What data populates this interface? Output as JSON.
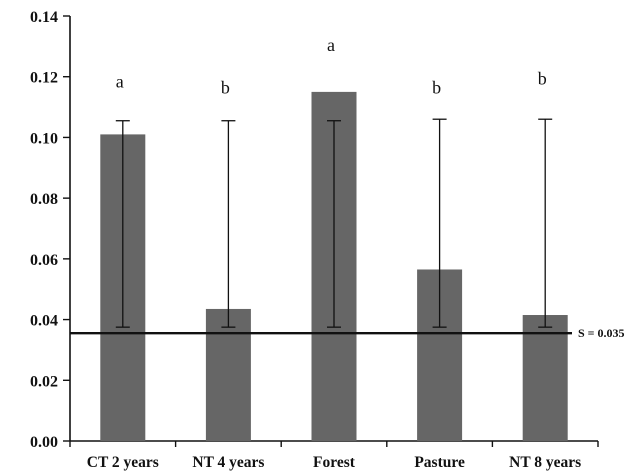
{
  "chart_data": {
    "type": "bar",
    "categories": [
      "CT 2 years",
      "NT 4 years",
      "Forest",
      "Pasture",
      "NT 8 years"
    ],
    "values": [
      0.101,
      0.0435,
      0.115,
      0.0565,
      0.0415
    ],
    "error_bars": [
      {
        "low": 0.0375,
        "high": 0.1055
      },
      {
        "low": 0.0375,
        "high": 0.1055
      },
      {
        "low": 0.0375,
        "high": 0.1055
      },
      {
        "low": 0.0375,
        "high": 0.106
      },
      {
        "low": 0.0375,
        "high": 0.106
      }
    ],
    "letters": [
      "a",
      "b",
      "a",
      "b",
      "b"
    ],
    "letter_levels": [
      0.1165,
      0.1145,
      0.1285,
      0.1145,
      0.1175
    ],
    "reference_line": {
      "value": 0.0355,
      "label": "S = 0.035"
    },
    "yticks": [
      "0.00",
      "0.02",
      "0.04",
      "0.06",
      "0.08",
      "0.10",
      "0.12",
      "0.14"
    ],
    "ylim": [
      0,
      0.14
    ],
    "title": "",
    "xlabel": "",
    "ylabel": "",
    "grid": false,
    "bar_color": "#666666",
    "line_color": "#111111"
  }
}
